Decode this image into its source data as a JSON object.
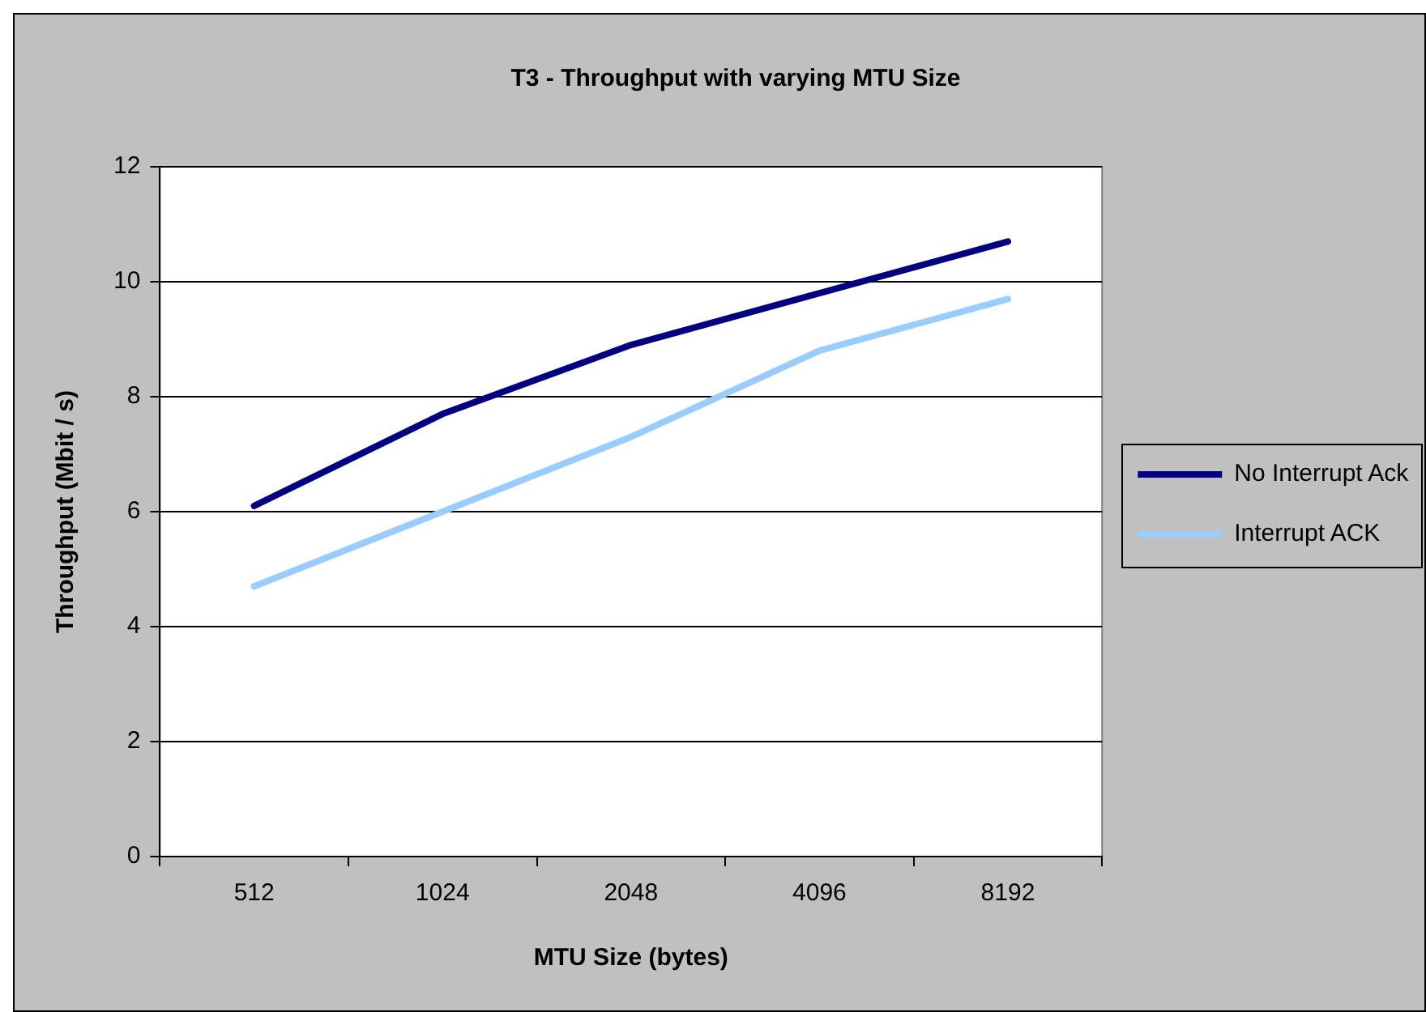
{
  "chart_data": {
    "type": "line",
    "title": "T3 - Throughput with varying MTU Size",
    "xlabel": "MTU Size (bytes)",
    "ylabel": "Throughput (Mbit / s)",
    "categories": [
      "512",
      "1024",
      "2048",
      "4096",
      "8192"
    ],
    "series": [
      {
        "name": "No Interrupt Ack",
        "color": "#000080",
        "values": [
          6.1,
          7.7,
          8.9,
          9.8,
          10.7
        ]
      },
      {
        "name": "Interrupt ACK",
        "color": "#99ccff",
        "values": [
          4.7,
          6.0,
          7.3,
          8.8,
          9.7
        ]
      }
    ],
    "ylim": [
      0,
      12
    ],
    "yticks": [
      0,
      2,
      4,
      6,
      8,
      10,
      12
    ],
    "grid": "y",
    "legend": "right",
    "marker": "none",
    "line_style": "solid"
  }
}
